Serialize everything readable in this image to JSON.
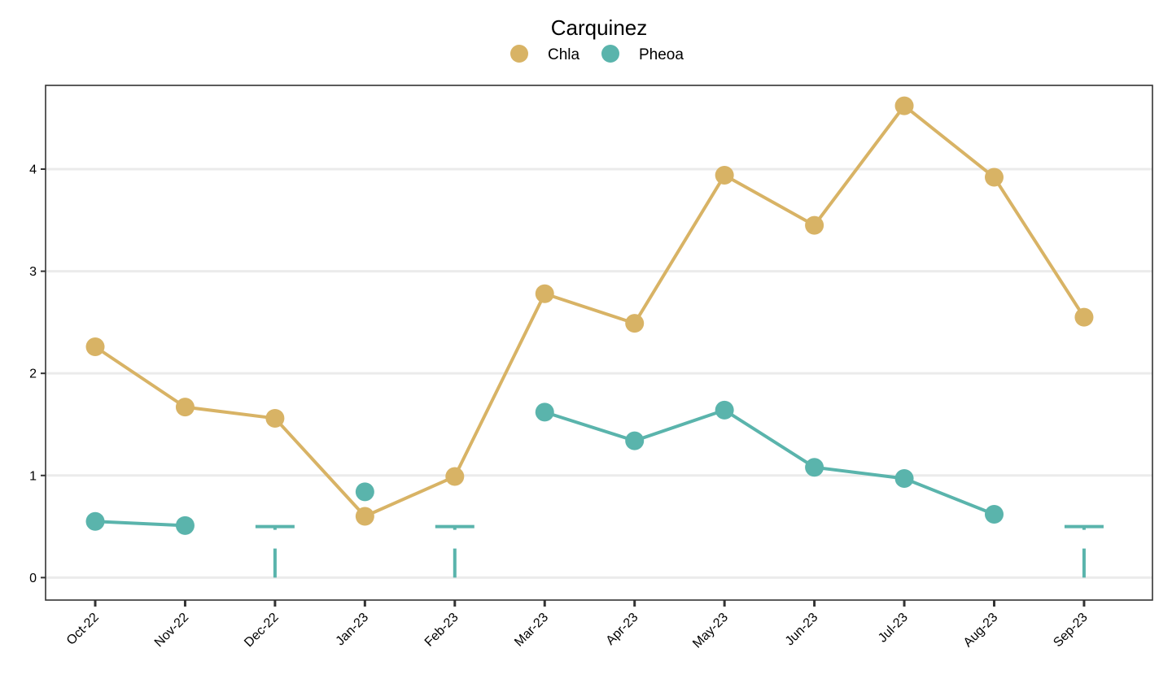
{
  "chart_data": {
    "type": "line",
    "title": "Carquinez",
    "xlabel": "",
    "ylabel": "",
    "categories": [
      "Oct-22",
      "Nov-22",
      "Dec-22",
      "Jan-23",
      "Feb-23",
      "Mar-23",
      "Apr-23",
      "May-23",
      "Jun-23",
      "Jul-23",
      "Aug-23",
      "Sep-23"
    ],
    "ylim": [
      -0.22,
      4.82
    ],
    "yticks": [
      0,
      1,
      2,
      3,
      4
    ],
    "grid": "horizontal",
    "legend_position": "top",
    "series": [
      {
        "name": "Chla",
        "color": "#D8B365",
        "values": [
          2.26,
          1.67,
          1.56,
          0.6,
          0.99,
          2.78,
          2.49,
          3.94,
          3.45,
          4.62,
          3.92,
          2.55
        ]
      },
      {
        "name": "Pheoa",
        "color": "#5AB4AC",
        "values": [
          0.55,
          0.51,
          null,
          0.84,
          null,
          1.62,
          1.34,
          1.64,
          1.08,
          0.97,
          0.62,
          null
        ]
      }
    ],
    "below_reporting_limit": {
      "series": "Pheoa",
      "color": "#5AB4AC",
      "categories": [
        "Dec-22",
        "Feb-23",
        "Sep-23"
      ],
      "upper": 0.5
    }
  }
}
